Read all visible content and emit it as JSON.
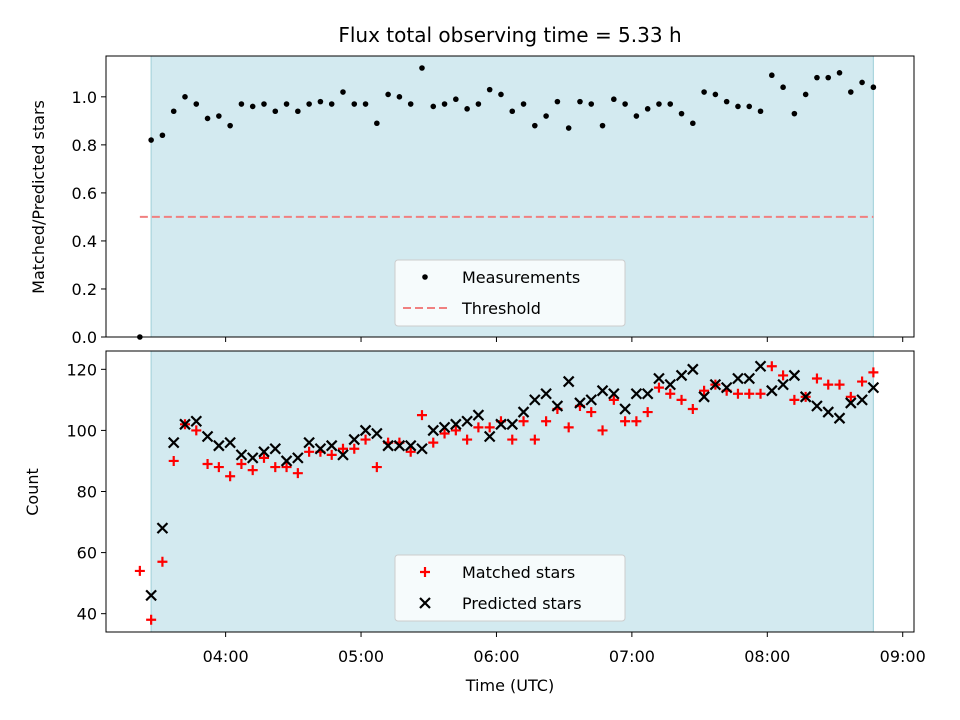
{
  "chart_data": [
    {
      "type": "scatter",
      "panel": "top",
      "title": "Flux total observing time = 5.33 h",
      "xlabel": "",
      "ylabel": "Matched/Predicted stars",
      "ylim": [
        0,
        1.17
      ],
      "xlim": [
        "03:07",
        "09:05"
      ],
      "yticks": [
        "0.0",
        "0.2",
        "0.4",
        "0.6",
        "0.8",
        "1.0"
      ],
      "observing_window": [
        "03:27",
        "08:47"
      ],
      "threshold": {
        "name": "Threshold",
        "value": 0.5,
        "color": "#f08080",
        "x_range": [
          "03:22",
          "08:47"
        ]
      },
      "series": [
        {
          "name": "Measurements",
          "color": "#000000",
          "marker": "dot",
          "points": [
            [
              "03:22",
              0.0
            ],
            [
              "03:27",
              0.82
            ],
            [
              "03:32",
              0.84
            ],
            [
              "03:37",
              0.94
            ],
            [
              "03:42",
              1.0
            ],
            [
              "03:47",
              0.97
            ],
            [
              "03:52",
              0.91
            ],
            [
              "03:57",
              0.92
            ],
            [
              "04:02",
              0.88
            ],
            [
              "04:07",
              0.97
            ],
            [
              "04:12",
              0.96
            ],
            [
              "04:17",
              0.97
            ],
            [
              "04:22",
              0.94
            ],
            [
              "04:27",
              0.97
            ],
            [
              "04:32",
              0.94
            ],
            [
              "04:37",
              0.97
            ],
            [
              "04:42",
              0.98
            ],
            [
              "04:47",
              0.97
            ],
            [
              "04:52",
              1.02
            ],
            [
              "04:57",
              0.97
            ],
            [
              "05:02",
              0.97
            ],
            [
              "05:07",
              0.89
            ],
            [
              "05:12",
              1.01
            ],
            [
              "05:17",
              1.0
            ],
            [
              "05:22",
              0.97
            ],
            [
              "05:27",
              1.12
            ],
            [
              "05:32",
              0.96
            ],
            [
              "05:37",
              0.97
            ],
            [
              "05:42",
              0.99
            ],
            [
              "05:47",
              0.95
            ],
            [
              "05:52",
              0.97
            ],
            [
              "05:57",
              1.03
            ],
            [
              "06:02",
              1.01
            ],
            [
              "06:07",
              0.94
            ],
            [
              "06:12",
              0.97
            ],
            [
              "06:17",
              0.88
            ],
            [
              "06:22",
              0.92
            ],
            [
              "06:27",
              0.98
            ],
            [
              "06:32",
              0.87
            ],
            [
              "06:37",
              0.98
            ],
            [
              "06:42",
              0.97
            ],
            [
              "06:47",
              0.88
            ],
            [
              "06:52",
              0.99
            ],
            [
              "06:57",
              0.97
            ],
            [
              "07:02",
              0.92
            ],
            [
              "07:07",
              0.95
            ],
            [
              "07:12",
              0.97
            ],
            [
              "07:17",
              0.97
            ],
            [
              "07:22",
              0.93
            ],
            [
              "07:27",
              0.89
            ],
            [
              "07:32",
              1.02
            ],
            [
              "07:37",
              1.01
            ],
            [
              "07:42",
              0.98
            ],
            [
              "07:47",
              0.96
            ],
            [
              "07:52",
              0.96
            ],
            [
              "07:57",
              0.94
            ],
            [
              "08:02",
              1.09
            ],
            [
              "08:07",
              1.04
            ],
            [
              "08:12",
              0.93
            ],
            [
              "08:17",
              1.01
            ],
            [
              "08:22",
              1.08
            ],
            [
              "08:27",
              1.08
            ],
            [
              "08:32",
              1.1
            ],
            [
              "08:37",
              1.02
            ],
            [
              "08:42",
              1.06
            ],
            [
              "08:47",
              1.04
            ]
          ]
        }
      ],
      "legend": {
        "placement": "bottom-center",
        "entries": [
          "Measurements",
          "Threshold"
        ]
      }
    },
    {
      "type": "scatter",
      "panel": "bottom",
      "title": "",
      "xlabel": "Time (UTC)",
      "ylabel": "Count",
      "ylim": [
        34,
        126
      ],
      "xlim": [
        "03:07",
        "09:05"
      ],
      "xticks": [
        "04:00",
        "05:00",
        "06:00",
        "07:00",
        "08:00",
        "09:00"
      ],
      "yticks": [
        "40",
        "60",
        "80",
        "100",
        "120"
      ],
      "observing_window": [
        "03:27",
        "08:47"
      ],
      "series": [
        {
          "name": "Matched stars",
          "color": "#ff0000",
          "marker": "plus",
          "points": [
            [
              "03:22",
              54
            ],
            [
              "03:27",
              38
            ],
            [
              "03:32",
              57
            ],
            [
              "03:37",
              90
            ],
            [
              "03:42",
              102
            ],
            [
              "03:47",
              100
            ],
            [
              "03:52",
              89
            ],
            [
              "03:57",
              88
            ],
            [
              "04:02",
              85
            ],
            [
              "04:07",
              89
            ],
            [
              "04:12",
              87
            ],
            [
              "04:17",
              91
            ],
            [
              "04:22",
              88
            ],
            [
              "04:27",
              88
            ],
            [
              "04:32",
              86
            ],
            [
              "04:37",
              93
            ],
            [
              "04:42",
              93
            ],
            [
              "04:47",
              92
            ],
            [
              "04:52",
              94
            ],
            [
              "04:57",
              94
            ],
            [
              "05:02",
              97
            ],
            [
              "05:07",
              88
            ],
            [
              "05:12",
              96
            ],
            [
              "05:17",
              96
            ],
            [
              "05:22",
              93
            ],
            [
              "05:27",
              105
            ],
            [
              "05:32",
              96
            ],
            [
              "05:37",
              99
            ],
            [
              "05:42",
              100
            ],
            [
              "05:47",
              97
            ],
            [
              "05:52",
              101
            ],
            [
              "05:57",
              101
            ],
            [
              "06:02",
              103
            ],
            [
              "06:07",
              97
            ],
            [
              "06:12",
              103
            ],
            [
              "06:17",
              97
            ],
            [
              "06:22",
              103
            ],
            [
              "06:27",
              107
            ],
            [
              "06:32",
              101
            ],
            [
              "06:37",
              108
            ],
            [
              "06:42",
              106
            ],
            [
              "06:47",
              100
            ],
            [
              "06:52",
              110
            ],
            [
              "06:57",
              103
            ],
            [
              "07:02",
              103
            ],
            [
              "07:07",
              106
            ],
            [
              "07:12",
              114
            ],
            [
              "07:17",
              112
            ],
            [
              "07:22",
              110
            ],
            [
              "07:27",
              107
            ],
            [
              "07:32",
              113
            ],
            [
              "07:37",
              115
            ],
            [
              "07:42",
              113
            ],
            [
              "07:47",
              112
            ],
            [
              "07:52",
              112
            ],
            [
              "07:57",
              112
            ],
            [
              "08:02",
              121
            ],
            [
              "08:07",
              118
            ],
            [
              "08:12",
              110
            ],
            [
              "08:17",
              111
            ],
            [
              "08:22",
              117
            ],
            [
              "08:27",
              115
            ],
            [
              "08:32",
              115
            ],
            [
              "08:37",
              111
            ],
            [
              "08:42",
              116
            ],
            [
              "08:47",
              119
            ]
          ]
        },
        {
          "name": "Predicted stars",
          "color": "#000000",
          "marker": "x",
          "points": [
            [
              "03:27",
              46
            ],
            [
              "03:32",
              68
            ],
            [
              "03:37",
              96
            ],
            [
              "03:42",
              102
            ],
            [
              "03:47",
              103
            ],
            [
              "03:52",
              98
            ],
            [
              "03:57",
              95
            ],
            [
              "04:02",
              96
            ],
            [
              "04:07",
              92
            ],
            [
              "04:12",
              91
            ],
            [
              "04:17",
              93
            ],
            [
              "04:22",
              94
            ],
            [
              "04:27",
              90
            ],
            [
              "04:32",
              91
            ],
            [
              "04:37",
              96
            ],
            [
              "04:42",
              94
            ],
            [
              "04:47",
              95
            ],
            [
              "04:52",
              92
            ],
            [
              "04:57",
              97
            ],
            [
              "05:02",
              100
            ],
            [
              "05:07",
              99
            ],
            [
              "05:12",
              95
            ],
            [
              "05:17",
              95
            ],
            [
              "05:22",
              95
            ],
            [
              "05:27",
              94
            ],
            [
              "05:32",
              100
            ],
            [
              "05:37",
              101
            ],
            [
              "05:42",
              102
            ],
            [
              "05:47",
              103
            ],
            [
              "05:52",
              105
            ],
            [
              "05:57",
              98
            ],
            [
              "06:02",
              102
            ],
            [
              "06:07",
              102
            ],
            [
              "06:12",
              106
            ],
            [
              "06:17",
              110
            ],
            [
              "06:22",
              112
            ],
            [
              "06:27",
              108
            ],
            [
              "06:32",
              116
            ],
            [
              "06:37",
              109
            ],
            [
              "06:42",
              110
            ],
            [
              "06:47",
              113
            ],
            [
              "06:52",
              112
            ],
            [
              "06:57",
              107
            ],
            [
              "07:02",
              112
            ],
            [
              "07:07",
              112
            ],
            [
              "07:12",
              117
            ],
            [
              "07:17",
              115
            ],
            [
              "07:22",
              118
            ],
            [
              "07:27",
              120
            ],
            [
              "07:32",
              111
            ],
            [
              "07:37",
              115
            ],
            [
              "07:42",
              114
            ],
            [
              "07:47",
              117
            ],
            [
              "07:52",
              117
            ],
            [
              "07:57",
              121
            ],
            [
              "08:02",
              113
            ],
            [
              "08:07",
              115
            ],
            [
              "08:12",
              118
            ],
            [
              "08:17",
              111
            ],
            [
              "08:22",
              108
            ],
            [
              "08:27",
              106
            ],
            [
              "08:32",
              104
            ],
            [
              "08:37",
              109
            ],
            [
              "08:42",
              110
            ],
            [
              "08:47",
              114
            ]
          ]
        }
      ],
      "legend": {
        "placement": "bottom-center",
        "entries": [
          "Matched stars",
          "Predicted stars"
        ]
      }
    }
  ],
  "colors": {
    "observing_window": "#d3eaf0",
    "window_edge": "#a9d5dd"
  }
}
